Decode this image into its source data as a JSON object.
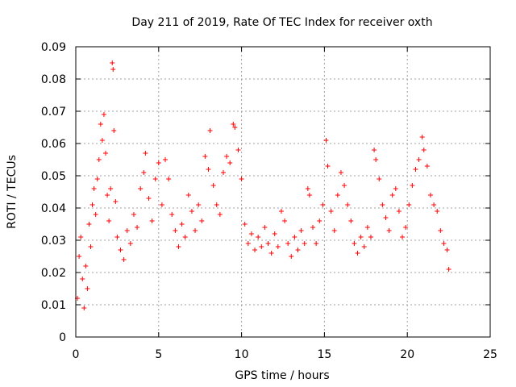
{
  "chart_data": {
    "type": "scatter",
    "title": "Day 211 of 2019, Rate Of TEC Index for receiver oxth",
    "xlabel": "GPS time / hours",
    "ylabel": "ROTI / TECUs",
    "xlim": [
      0,
      25
    ],
    "ylim": [
      0,
      0.09
    ],
    "xticks": [
      0,
      5,
      10,
      15,
      20,
      25
    ],
    "xtick_labels": [
      "0",
      "5",
      "10",
      "15",
      "20",
      "25"
    ],
    "yticks": [
      0,
      0.01,
      0.02,
      0.03,
      0.04,
      0.05,
      0.06,
      0.07,
      0.08,
      0.09
    ],
    "ytick_labels": [
      "0",
      "0.01",
      "0.02",
      "0.03",
      "0.04",
      "0.05",
      "0.06",
      "0.07",
      "0.08",
      "0.09"
    ],
    "grid": true,
    "marker": "+",
    "color": "#ff0000",
    "series": [
      {
        "points": [
          [
            0.1,
            0.012
          ],
          [
            0.2,
            0.025
          ],
          [
            0.3,
            0.031
          ],
          [
            0.4,
            0.018
          ],
          [
            0.5,
            0.009
          ],
          [
            0.6,
            0.022
          ],
          [
            0.7,
            0.015
          ],
          [
            0.8,
            0.035
          ],
          [
            0.9,
            0.028
          ],
          [
            1.0,
            0.041
          ],
          [
            1.1,
            0.046
          ],
          [
            1.2,
            0.038
          ],
          [
            1.3,
            0.049
          ],
          [
            1.4,
            0.055
          ],
          [
            1.5,
            0.066
          ],
          [
            1.6,
            0.061
          ],
          [
            1.7,
            0.069
          ],
          [
            1.8,
            0.057
          ],
          [
            1.9,
            0.044
          ],
          [
            2.0,
            0.036
          ],
          [
            2.1,
            0.046
          ],
          [
            2.2,
            0.085
          ],
          [
            2.25,
            0.083
          ],
          [
            2.3,
            0.064
          ],
          [
            2.4,
            0.042
          ],
          [
            2.5,
            0.031
          ],
          [
            2.7,
            0.027
          ],
          [
            2.9,
            0.024
          ],
          [
            3.1,
            0.033
          ],
          [
            3.3,
            0.029
          ],
          [
            3.5,
            0.038
          ],
          [
            3.7,
            0.034
          ],
          [
            3.9,
            0.046
          ],
          [
            4.1,
            0.051
          ],
          [
            4.2,
            0.057
          ],
          [
            4.4,
            0.043
          ],
          [
            4.6,
            0.036
          ],
          [
            4.8,
            0.049
          ],
          [
            5.0,
            0.054
          ],
          [
            5.2,
            0.041
          ],
          [
            5.4,
            0.055
          ],
          [
            5.6,
            0.049
          ],
          [
            5.8,
            0.038
          ],
          [
            6.0,
            0.033
          ],
          [
            6.2,
            0.028
          ],
          [
            6.4,
            0.035
          ],
          [
            6.6,
            0.031
          ],
          [
            6.8,
            0.044
          ],
          [
            7.0,
            0.039
          ],
          [
            7.2,
            0.033
          ],
          [
            7.4,
            0.041
          ],
          [
            7.6,
            0.036
          ],
          [
            7.8,
            0.056
          ],
          [
            8.0,
            0.052
          ],
          [
            8.1,
            0.064
          ],
          [
            8.3,
            0.047
          ],
          [
            8.5,
            0.041
          ],
          [
            8.7,
            0.038
          ],
          [
            8.9,
            0.051
          ],
          [
            9.1,
            0.056
          ],
          [
            9.3,
            0.054
          ],
          [
            9.5,
            0.066
          ],
          [
            9.6,
            0.065
          ],
          [
            9.8,
            0.058
          ],
          [
            10.0,
            0.049
          ],
          [
            10.2,
            0.035
          ],
          [
            10.4,
            0.029
          ],
          [
            10.6,
            0.032
          ],
          [
            10.8,
            0.027
          ],
          [
            11.0,
            0.031
          ],
          [
            11.2,
            0.028
          ],
          [
            11.4,
            0.034
          ],
          [
            11.6,
            0.029
          ],
          [
            11.8,
            0.026
          ],
          [
            12.0,
            0.032
          ],
          [
            12.2,
            0.028
          ],
          [
            12.4,
            0.039
          ],
          [
            12.6,
            0.036
          ],
          [
            12.8,
            0.029
          ],
          [
            13.0,
            0.025
          ],
          [
            13.2,
            0.031
          ],
          [
            13.4,
            0.027
          ],
          [
            13.6,
            0.033
          ],
          [
            13.8,
            0.029
          ],
          [
            14.0,
            0.046
          ],
          [
            14.1,
            0.044
          ],
          [
            14.3,
            0.034
          ],
          [
            14.5,
            0.029
          ],
          [
            14.7,
            0.036
          ],
          [
            14.9,
            0.041
          ],
          [
            15.1,
            0.061
          ],
          [
            15.2,
            0.053
          ],
          [
            15.4,
            0.039
          ],
          [
            15.6,
            0.033
          ],
          [
            15.8,
            0.044
          ],
          [
            16.0,
            0.051
          ],
          [
            16.2,
            0.047
          ],
          [
            16.4,
            0.041
          ],
          [
            16.6,
            0.036
          ],
          [
            16.8,
            0.029
          ],
          [
            17.0,
            0.026
          ],
          [
            17.2,
            0.031
          ],
          [
            17.4,
            0.028
          ],
          [
            17.6,
            0.034
          ],
          [
            17.8,
            0.031
          ],
          [
            18.0,
            0.058
          ],
          [
            18.1,
            0.055
          ],
          [
            18.3,
            0.049
          ],
          [
            18.5,
            0.041
          ],
          [
            18.7,
            0.037
          ],
          [
            18.9,
            0.033
          ],
          [
            19.1,
            0.044
          ],
          [
            19.3,
            0.046
          ],
          [
            19.5,
            0.039
          ],
          [
            19.7,
            0.031
          ],
          [
            19.9,
            0.034
          ],
          [
            20.1,
            0.041
          ],
          [
            20.3,
            0.047
          ],
          [
            20.5,
            0.052
          ],
          [
            20.7,
            0.055
          ],
          [
            20.9,
            0.062
          ],
          [
            21.0,
            0.058
          ],
          [
            21.2,
            0.053
          ],
          [
            21.4,
            0.044
          ],
          [
            21.6,
            0.041
          ],
          [
            21.8,
            0.039
          ],
          [
            22.0,
            0.033
          ],
          [
            22.2,
            0.029
          ],
          [
            22.4,
            0.027
          ],
          [
            22.5,
            0.021
          ]
        ]
      }
    ]
  }
}
